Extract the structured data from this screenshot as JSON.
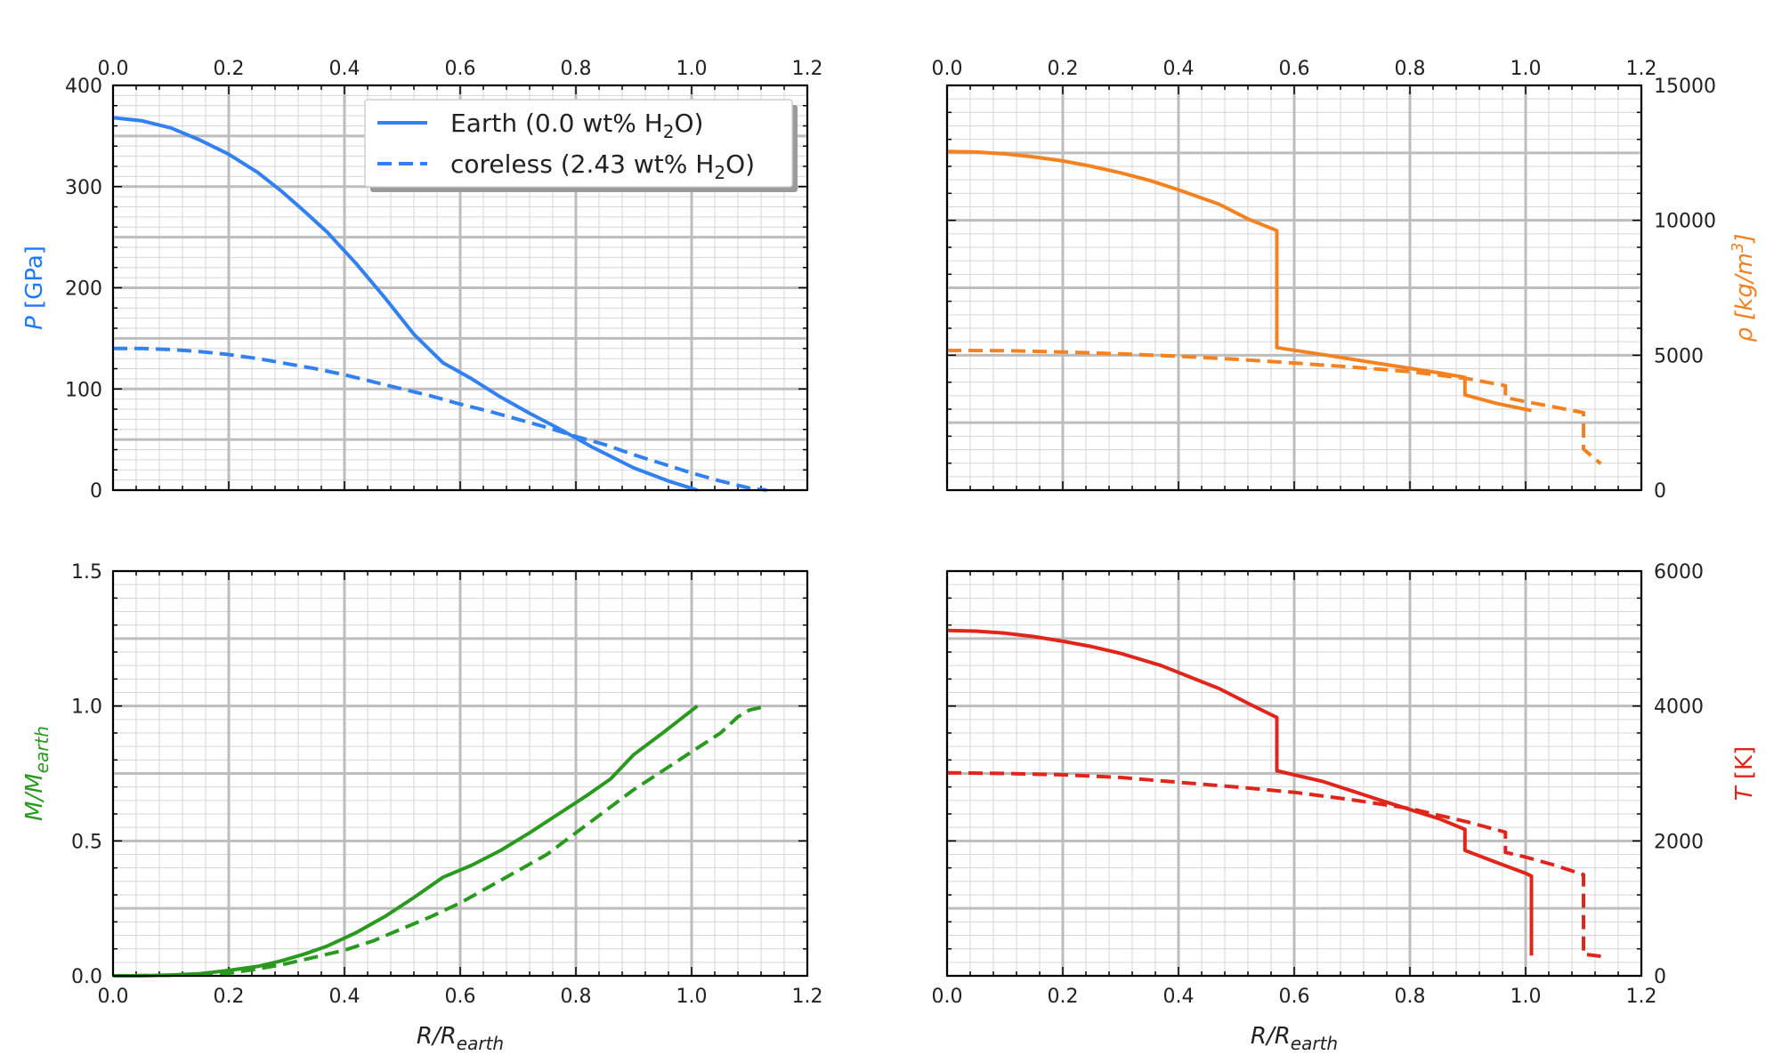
{
  "chart_data": [
    {
      "id": "pressure",
      "type": "line",
      "position": "top-left",
      "xlabel": "R/R_earth",
      "xlabel_parts": {
        "base": "R/R",
        "sub": "earth"
      },
      "xlim": [
        0,
        1.2
      ],
      "xticks": [
        0,
        0.2,
        0.4,
        0.6,
        0.8,
        1.0,
        1.2
      ],
      "xtick_labels": [
        "0.0",
        "0.2",
        "0.4",
        "0.6",
        "0.8",
        "1.0",
        "1.2"
      ],
      "xtick_labels_top": true,
      "xtick_labels_bottom": false,
      "ylabel": "P [GPa]",
      "ylabel_parts": {
        "var": "P",
        "unit": " [GPa]"
      },
      "ylabel_color": "#1f77ff",
      "ylabel_side": "left",
      "ylim": [
        0,
        400
      ],
      "yticks": [
        0,
        100,
        200,
        300,
        400
      ],
      "ytick_labels": [
        "0",
        "100",
        "200",
        "300",
        "400"
      ],
      "ytick_labels_side": "left",
      "grid": true,
      "legend": {
        "placement": "top-right",
        "entries": [
          {
            "series": "Earth",
            "prefix": "Earth (0.0 wt% H",
            "sub": "2",
            "suffix": "O)",
            "dash": "solid"
          },
          {
            "series": "coreless",
            "prefix": "coreless (2.43 wt% H",
            "sub": "2",
            "suffix": "O)",
            "dash": "dashed"
          }
        ]
      },
      "series": [
        {
          "name": "Earth (0.0 wt% H2O)",
          "color": "#3181f2",
          "dash": "solid",
          "points": [
            [
              0,
              368
            ],
            [
              0.05,
              365
            ],
            [
              0.1,
              358
            ],
            [
              0.15,
              346
            ],
            [
              0.2,
              332
            ],
            [
              0.25,
              314
            ],
            [
              0.29,
              296
            ],
            [
              0.33,
              276
            ],
            [
              0.37,
              255
            ],
            [
              0.42,
              224
            ],
            [
              0.47,
              190
            ],
            [
              0.52,
              154
            ],
            [
              0.57,
              126
            ],
            [
              0.62,
              110
            ],
            [
              0.67,
              92
            ],
            [
              0.72,
              76
            ],
            [
              0.77,
              61
            ],
            [
              0.83,
              42
            ],
            [
              0.9,
              22
            ],
            [
              0.96,
              9
            ],
            [
              1.01,
              0
            ]
          ]
        },
        {
          "name": "coreless (2.43 wt% H2O)",
          "color": "#3181f2",
          "dash": "dashed",
          "points": [
            [
              0,
              140
            ],
            [
              0.05,
              140
            ],
            [
              0.1,
              139
            ],
            [
              0.15,
              137
            ],
            [
              0.2,
              134
            ],
            [
              0.25,
              130
            ],
            [
              0.3,
              125
            ],
            [
              0.35,
              120
            ],
            [
              0.4,
              114
            ],
            [
              0.45,
              107
            ],
            [
              0.5,
              100
            ],
            [
              0.55,
              93
            ],
            [
              0.6,
              85
            ],
            [
              0.65,
              78
            ],
            [
              0.7,
              70
            ],
            [
              0.75,
              62
            ],
            [
              0.8,
              53
            ],
            [
              0.85,
              45
            ],
            [
              0.9,
              35
            ],
            [
              0.95,
              26
            ],
            [
              1.0,
              17
            ],
            [
              1.05,
              9
            ],
            [
              1.1,
              2
            ],
            [
              1.13,
              0
            ]
          ]
        }
      ]
    },
    {
      "id": "density",
      "type": "line",
      "position": "top-right",
      "xlabel": "R/R_earth",
      "xlim": [
        0,
        1.2
      ],
      "xticks": [
        0,
        0.2,
        0.4,
        0.6,
        0.8,
        1.0,
        1.2
      ],
      "xtick_labels": [
        "0.0",
        "0.2",
        "0.4",
        "0.6",
        "0.8",
        "1.0",
        "1.2"
      ],
      "xtick_labels_top": true,
      "xtick_labels_bottom": false,
      "ylabel": "ρ [kg/m^3]",
      "ylabel_parts": {
        "var": "ρ [kg/m",
        "sup": "3",
        "close": "]"
      },
      "ylabel_color": "#f28021",
      "ylabel_side": "right",
      "ylim": [
        0,
        15000
      ],
      "yticks": [
        0,
        5000,
        10000,
        15000
      ],
      "ytick_labels": [
        "0",
        "5000",
        "10000",
        "15000"
      ],
      "ytick_labels_side": "right",
      "grid": true,
      "series": [
        {
          "name": "Earth",
          "color": "#f58220",
          "dash": "solid",
          "points": [
            [
              0,
              12550
            ],
            [
              0.05,
              12530
            ],
            [
              0.1,
              12460
            ],
            [
              0.15,
              12350
            ],
            [
              0.2,
              12200
            ],
            [
              0.25,
              12000
            ],
            [
              0.3,
              11760
            ],
            [
              0.35,
              11480
            ],
            [
              0.4,
              11130
            ],
            [
              0.47,
              10600
            ],
            [
              0.52,
              10050
            ],
            [
              0.57,
              9620
            ],
            [
              0.57,
              5280
            ],
            [
              0.65,
              5020
            ],
            [
              0.75,
              4680
            ],
            [
              0.85,
              4350
            ],
            [
              0.895,
              4180
            ],
            [
              0.895,
              3530
            ],
            [
              0.95,
              3210
            ],
            [
              1.01,
              2950
            ]
          ]
        },
        {
          "name": "coreless",
          "color": "#f58220",
          "dash": "dashed",
          "points": [
            [
              0,
              5180
            ],
            [
              0.1,
              5170
            ],
            [
              0.2,
              5120
            ],
            [
              0.3,
              5050
            ],
            [
              0.4,
              4960
            ],
            [
              0.5,
              4850
            ],
            [
              0.6,
              4710
            ],
            [
              0.7,
              4560
            ],
            [
              0.8,
              4390
            ],
            [
              0.9,
              4130
            ],
            [
              0.965,
              3870
            ],
            [
              0.965,
              3430
            ],
            [
              1.0,
              3280
            ],
            [
              1.05,
              3080
            ],
            [
              1.1,
              2870
            ],
            [
              1.1,
              1520
            ],
            [
              1.13,
              980
            ]
          ]
        }
      ]
    },
    {
      "id": "mass",
      "type": "line",
      "position": "bottom-left",
      "xlabel": "R/R_earth",
      "xlabel_parts": {
        "base": "R/R",
        "sub": "earth"
      },
      "xlim": [
        0,
        1.2
      ],
      "xticks": [
        0,
        0.2,
        0.4,
        0.6,
        0.8,
        1.0,
        1.2
      ],
      "xtick_labels": [
        "0.0",
        "0.2",
        "0.4",
        "0.6",
        "0.8",
        "1.0",
        "1.2"
      ],
      "xtick_labels_top": false,
      "xtick_labels_bottom": true,
      "ylabel": "M/M_earth",
      "ylabel_parts": {
        "base": "M/M",
        "sub": "earth"
      },
      "ylabel_color": "#2a9a1e",
      "ylabel_side": "left",
      "ylim": [
        0,
        1.5
      ],
      "yticks": [
        0,
        0.5,
        1.0,
        1.5
      ],
      "ytick_labels": [
        "0.0",
        "0.5",
        "1.0",
        "1.5"
      ],
      "ytick_labels_side": "left",
      "grid": true,
      "series": [
        {
          "name": "Earth",
          "color": "#2a9a1e",
          "dash": "solid",
          "points": [
            [
              0,
              0
            ],
            [
              0.05,
              0
            ],
            [
              0.1,
              0.003
            ],
            [
              0.15,
              0.008
            ],
            [
              0.2,
              0.02
            ],
            [
              0.25,
              0.035
            ],
            [
              0.29,
              0.055
            ],
            [
              0.33,
              0.08
            ],
            [
              0.37,
              0.11
            ],
            [
              0.42,
              0.16
            ],
            [
              0.47,
              0.22
            ],
            [
              0.52,
              0.29
            ],
            [
              0.57,
              0.365
            ],
            [
              0.62,
              0.41
            ],
            [
              0.67,
              0.465
            ],
            [
              0.72,
              0.53
            ],
            [
              0.77,
              0.6
            ],
            [
              0.82,
              0.67
            ],
            [
              0.86,
              0.73
            ],
            [
              0.9,
              0.82
            ],
            [
              0.95,
              0.9
            ],
            [
              1.01,
              1.0
            ]
          ]
        },
        {
          "name": "coreless",
          "color": "#2a9a1e",
          "dash": "dashed",
          "points": [
            [
              0,
              0
            ],
            [
              0.1,
              0.002
            ],
            [
              0.2,
              0.01
            ],
            [
              0.25,
              0.025
            ],
            [
              0.3,
              0.045
            ],
            [
              0.35,
              0.07
            ],
            [
              0.4,
              0.095
            ],
            [
              0.45,
              0.13
            ],
            [
              0.5,
              0.175
            ],
            [
              0.55,
              0.22
            ],
            [
              0.6,
              0.27
            ],
            [
              0.65,
              0.33
            ],
            [
              0.7,
              0.39
            ],
            [
              0.75,
              0.45
            ],
            [
              0.8,
              0.53
            ],
            [
              0.85,
              0.61
            ],
            [
              0.9,
              0.69
            ],
            [
              0.95,
              0.76
            ],
            [
              1.0,
              0.83
            ],
            [
              1.05,
              0.9
            ],
            [
              1.08,
              0.96
            ],
            [
              1.1,
              0.985
            ],
            [
              1.13,
              1.0
            ]
          ]
        }
      ]
    },
    {
      "id": "temperature",
      "type": "line",
      "position": "bottom-right",
      "xlabel": "R/R_earth",
      "xlabel_parts": {
        "base": "R/R",
        "sub": "earth"
      },
      "xlim": [
        0,
        1.2
      ],
      "xticks": [
        0,
        0.2,
        0.4,
        0.6,
        0.8,
        1.0,
        1.2
      ],
      "xtick_labels": [
        "0.0",
        "0.2",
        "0.4",
        "0.6",
        "0.8",
        "1.0",
        "1.2"
      ],
      "xtick_labels_top": false,
      "xtick_labels_bottom": true,
      "ylabel": "T [K]",
      "ylabel_parts": {
        "var": "T",
        "unit": " [K]"
      },
      "ylabel_color": "#e0261a",
      "ylabel_side": "right",
      "ylim": [
        0,
        6000
      ],
      "yticks": [
        0,
        2000,
        4000,
        6000
      ],
      "ytick_labels": [
        "0",
        "2000",
        "4000",
        "6000"
      ],
      "ytick_labels_side": "right",
      "grid": true,
      "series": [
        {
          "name": "Earth",
          "color": "#e0261a",
          "dash": "solid",
          "points": [
            [
              0,
              5120
            ],
            [
              0.05,
              5110
            ],
            [
              0.1,
              5080
            ],
            [
              0.15,
              5030
            ],
            [
              0.2,
              4960
            ],
            [
              0.25,
              4880
            ],
            [
              0.3,
              4780
            ],
            [
              0.37,
              4600
            ],
            [
              0.42,
              4430
            ],
            [
              0.47,
              4260
            ],
            [
              0.52,
              4040
            ],
            [
              0.57,
              3830
            ],
            [
              0.57,
              3040
            ],
            [
              0.65,
              2880
            ],
            [
              0.75,
              2600
            ],
            [
              0.85,
              2330
            ],
            [
              0.895,
              2170
            ],
            [
              0.895,
              1860
            ],
            [
              0.95,
              1680
            ],
            [
              1.0,
              1520
            ],
            [
              1.01,
              1480
            ],
            [
              1.01,
              300
            ]
          ]
        },
        {
          "name": "coreless",
          "color": "#e0261a",
          "dash": "dashed",
          "points": [
            [
              0,
              3010
            ],
            [
              0.1,
              3000
            ],
            [
              0.2,
              2980
            ],
            [
              0.3,
              2940
            ],
            [
              0.4,
              2870
            ],
            [
              0.5,
              2800
            ],
            [
              0.6,
              2720
            ],
            [
              0.7,
              2610
            ],
            [
              0.8,
              2480
            ],
            [
              0.9,
              2280
            ],
            [
              0.965,
              2130
            ],
            [
              0.965,
              1830
            ],
            [
              1.0,
              1760
            ],
            [
              1.05,
              1640
            ],
            [
              1.1,
              1500
            ],
            [
              1.1,
              320
            ],
            [
              1.13,
              290
            ]
          ]
        }
      ]
    }
  ]
}
